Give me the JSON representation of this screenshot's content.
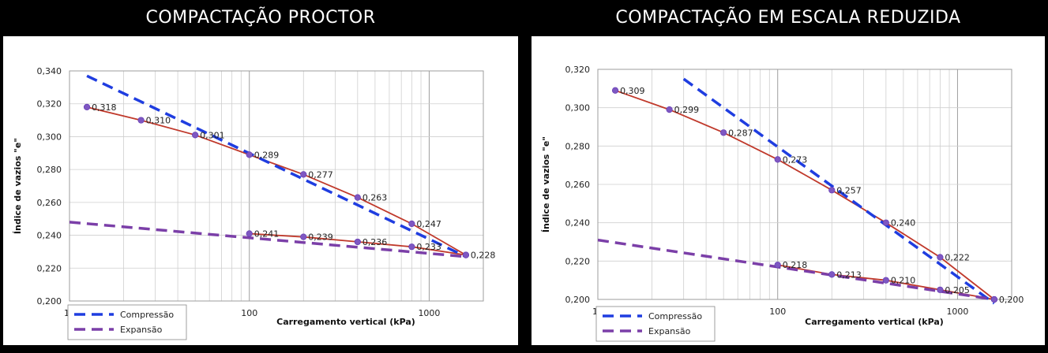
{
  "chart_data": [
    {
      "type": "line",
      "title": "COMPACTAÇÃO PROCTOR",
      "xlabel": "Carregamento vertical (kPa)",
      "ylabel": "Índice de vazios \"e\"",
      "xscale": "log",
      "xlim": [
        10,
        2000
      ],
      "ylim": [
        0.2,
        0.34
      ],
      "grid": true,
      "legend_position": "bottom-left",
      "x_tick_labels": [
        "10",
        "100",
        "1000"
      ],
      "y_tick_labels": [
        "0,200",
        "0,220",
        "0,240",
        "0,260",
        "0,280",
        "0,300",
        "0,320",
        "0,340"
      ],
      "series": [
        {
          "name": "measured-loading",
          "color": "#c0392b",
          "marker_color": "#7e57c2",
          "x": [
            12.5,
            25,
            50,
            100,
            200,
            400,
            800,
            1600
          ],
          "y": [
            0.318,
            0.31,
            0.301,
            0.289,
            0.277,
            0.263,
            0.247,
            0.228
          ],
          "labels": [
            "0,318",
            "0,310",
            "0,301",
            "0,289",
            "0,277",
            "0,263",
            "0,247",
            "0,228"
          ]
        },
        {
          "name": "measured-unloading",
          "color": "#c0392b",
          "marker_color": "#7e57c2",
          "x": [
            100,
            200,
            400,
            800,
            1600
          ],
          "y": [
            0.241,
            0.239,
            0.236,
            0.233,
            0.228
          ],
          "labels": [
            "0,241",
            "0,239",
            "0,236",
            "0,233",
            ""
          ]
        },
        {
          "name": "Compressão",
          "color": "#1f3de0",
          "dash": true,
          "x": [
            12.5,
            1600
          ],
          "y": [
            0.337,
            0.227
          ]
        },
        {
          "name": "Expansão",
          "color": "#7b3fa8",
          "dash": true,
          "x": [
            10,
            1600
          ],
          "y": [
            0.248,
            0.227
          ]
        }
      ]
    },
    {
      "type": "line",
      "title": "COMPACTAÇÃO EM ESCALA REDUZIDA",
      "xlabel": "Carregamento vertical (kPa)",
      "ylabel": "Índice de vazios \"e\"",
      "xscale": "log",
      "xlim": [
        10,
        2000
      ],
      "ylim": [
        0.2,
        0.32
      ],
      "grid": true,
      "legend_position": "bottom-left",
      "x_tick_labels": [
        "10",
        "100",
        "1000"
      ],
      "y_tick_labels": [
        "0,200",
        "0,220",
        "0,240",
        "0,260",
        "0,280",
        "0,300",
        "0,320"
      ],
      "series": [
        {
          "name": "measured-loading",
          "color": "#c0392b",
          "marker_color": "#7e57c2",
          "x": [
            12.5,
            25,
            50,
            100,
            200,
            400,
            800,
            1600
          ],
          "y": [
            0.309,
            0.299,
            0.287,
            0.273,
            0.257,
            0.24,
            0.222,
            0.2
          ],
          "labels": [
            "0,309",
            "0,299",
            "0,287",
            "0,273",
            "0,257",
            "0,240",
            "0,222",
            "0,200"
          ]
        },
        {
          "name": "measured-unloading",
          "color": "#c0392b",
          "marker_color": "#7e57c2",
          "x": [
            100,
            200,
            400,
            800,
            1600
          ],
          "y": [
            0.218,
            0.213,
            0.21,
            0.205,
            0.2
          ],
          "labels": [
            "0,218",
            "0,213",
            "0,210",
            "0,205",
            ""
          ]
        },
        {
          "name": "Compressão",
          "color": "#1f3de0",
          "dash": true,
          "x": [
            30,
            1600
          ],
          "y": [
            0.315,
            0.198
          ]
        },
        {
          "name": "Expansão",
          "color": "#7b3fa8",
          "dash": true,
          "x": [
            10,
            1600
          ],
          "y": [
            0.231,
            0.2
          ]
        }
      ]
    }
  ]
}
